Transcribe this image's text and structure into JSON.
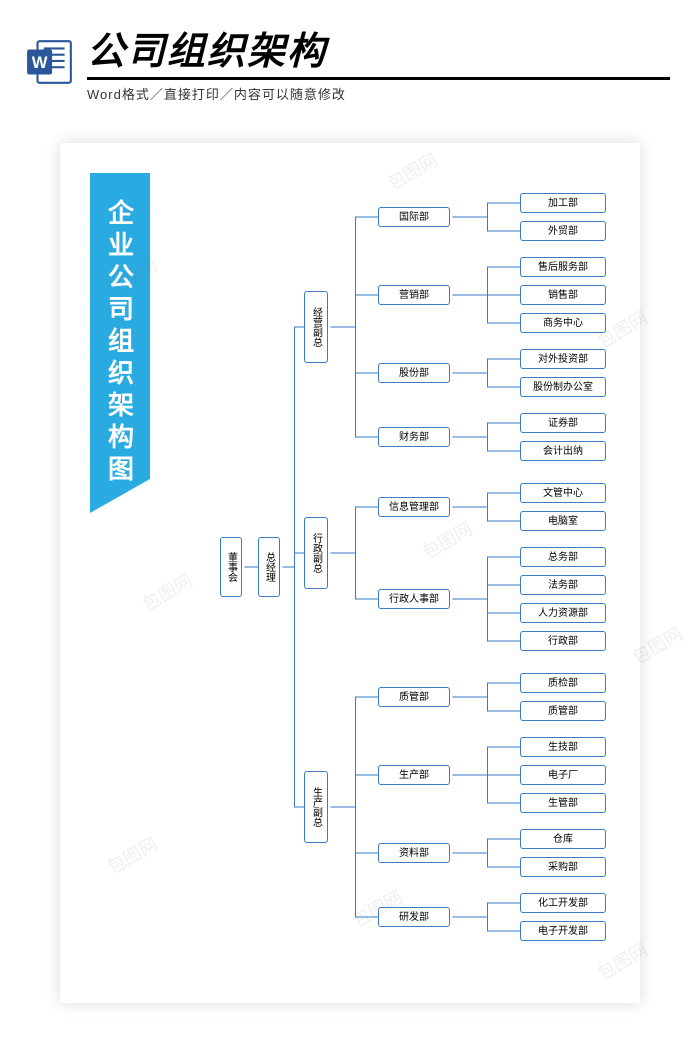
{
  "header": {
    "main_title": "公司组织架构",
    "sub_title": "Word格式／直接打印／内容可以随意修改"
  },
  "banner": "企业公司组织架构图",
  "colors": {
    "brand_blue": "#29abe2",
    "node_border": "#3a7ac8",
    "bg": "#ffffff"
  },
  "diagram": {
    "type": "tree",
    "level0": {
      "label": "董事会"
    },
    "level1": {
      "label": "总经理"
    },
    "level2": [
      {
        "id": "vp1",
        "label": "经营副总"
      },
      {
        "id": "vp2",
        "label": "行政副总"
      },
      {
        "id": "vp3",
        "label": "生产副总"
      }
    ],
    "level3": {
      "vp1": [
        {
          "id": "d1",
          "label": "国际部"
        },
        {
          "id": "d2",
          "label": "营销部"
        },
        {
          "id": "d3",
          "label": "股份部"
        },
        {
          "id": "d4",
          "label": "财务部"
        }
      ],
      "vp2": [
        {
          "id": "d5",
          "label": "信息管理部"
        },
        {
          "id": "d6",
          "label": "行政人事部"
        }
      ],
      "vp3": [
        {
          "id": "d7",
          "label": "质管部"
        },
        {
          "id": "d8",
          "label": "生产部"
        },
        {
          "id": "d9",
          "label": "资料部"
        },
        {
          "id": "d10",
          "label": "研发部"
        }
      ]
    },
    "level4": {
      "d1": [
        "加工部",
        "外贸部"
      ],
      "d2": [
        "售后服务部",
        "销售部",
        "商务中心"
      ],
      "d3": [
        "对外投资部",
        "股份制办公室"
      ],
      "d4": [
        "证券部",
        "会计出纳"
      ],
      "d5": [
        "文管中心",
        "电脑室"
      ],
      "d6": [
        "总务部",
        "法务部",
        "人力资源部",
        "行政部"
      ],
      "d7": [
        "质检部",
        "质管部"
      ],
      "d8": [
        "生技部",
        "电子厂",
        "生管部"
      ],
      "d9": [
        "仓库",
        "采购部"
      ],
      "d10": [
        "化工开发部",
        "电子开发部"
      ]
    }
  },
  "watermark_text": "包图网"
}
